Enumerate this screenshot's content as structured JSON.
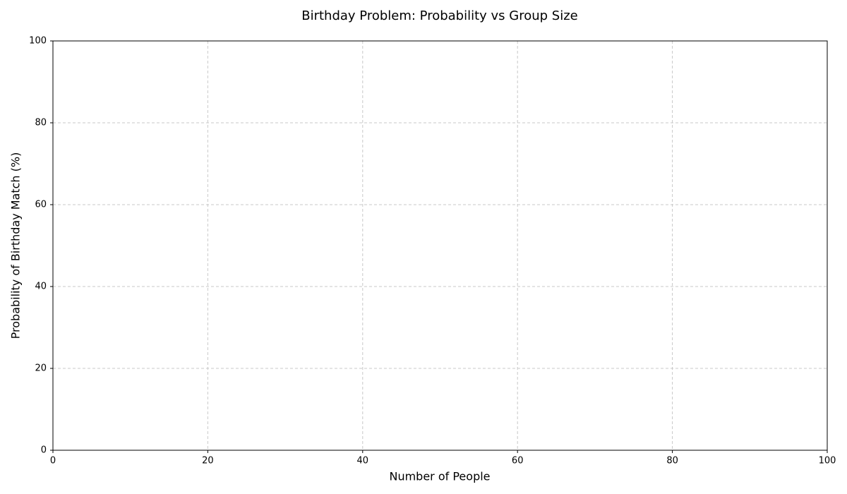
{
  "chart_data": {
    "type": "line",
    "title": "Birthday Problem: Probability vs Group Size",
    "x_label": "Number of People",
    "y_label": "Probability of Birthday Match (%)",
    "xlim": [
      0,
      100
    ],
    "xticks": [
      0,
      20,
      40,
      60,
      80,
      100
    ],
    "ylim": [
      0,
      100
    ],
    "yticks": [
      0,
      20,
      40,
      60,
      80,
      100
    ],
    "grid": true
  }
}
